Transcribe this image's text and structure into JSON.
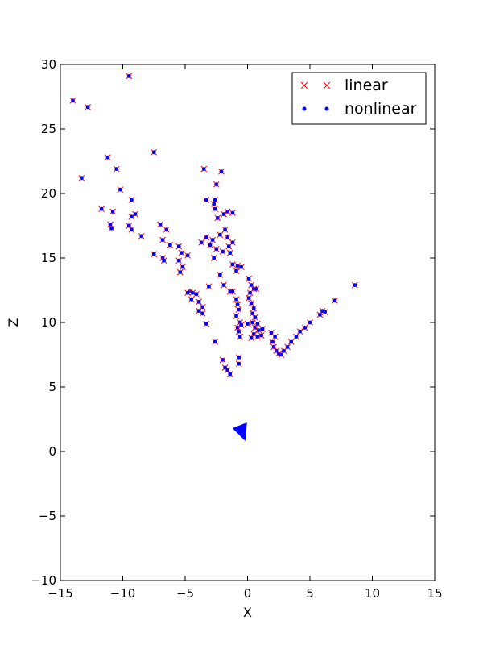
{
  "chart_data": {
    "type": "scatter",
    "title": "",
    "xlabel": "X",
    "ylabel": "Z",
    "xlim": [
      -15,
      15
    ],
    "ylim": [
      -10,
      30
    ],
    "xticks": [
      "−15",
      "−10",
      "−5",
      "0",
      "5",
      "10",
      "15"
    ],
    "yticks": [
      "−10",
      "−5",
      "0",
      "5",
      "10",
      "15",
      "20",
      "25",
      "30"
    ],
    "grid": false,
    "legend_position": "top-right",
    "colors": {
      "linear": "#ff0000",
      "nonlinear": "#0000ff",
      "camera": "#0000ff"
    },
    "series": [
      {
        "name": "linear",
        "marker": "x"
      },
      {
        "name": "nonlinear",
        "marker": "dot"
      }
    ],
    "camera": {
      "x": -0.5,
      "y": 1.5,
      "shape": "triangle"
    },
    "points": [
      [
        -14.0,
        27.2
      ],
      [
        -12.8,
        26.7
      ],
      [
        -9.5,
        29.1
      ],
      [
        -13.3,
        21.2
      ],
      [
        -11.2,
        22.8
      ],
      [
        -10.5,
        21.9
      ],
      [
        -7.5,
        23.2
      ],
      [
        -10.2,
        20.3
      ],
      [
        -11.7,
        18.8
      ],
      [
        -10.8,
        18.6
      ],
      [
        -9.3,
        19.5
      ],
      [
        -9.0,
        18.4
      ],
      [
        -9.5,
        17.5
      ],
      [
        -9.3,
        18.2
      ],
      [
        -11.0,
        17.6
      ],
      [
        -10.9,
        17.3
      ],
      [
        -9.3,
        17.2
      ],
      [
        -8.5,
        16.7
      ],
      [
        -7.0,
        17.6
      ],
      [
        -6.5,
        17.2
      ],
      [
        -6.8,
        16.4
      ],
      [
        -6.2,
        16.0
      ],
      [
        -5.5,
        15.9
      ],
      [
        -7.5,
        15.3
      ],
      [
        -6.8,
        15.0
      ],
      [
        -6.7,
        14.8
      ],
      [
        -5.3,
        15.4
      ],
      [
        -4.8,
        15.2
      ],
      [
        -5.5,
        14.8
      ],
      [
        -5.2,
        14.3
      ],
      [
        -5.4,
        13.9
      ],
      [
        -3.5,
        21.9
      ],
      [
        -2.1,
        21.7
      ],
      [
        -2.5,
        20.7
      ],
      [
        -3.3,
        19.5
      ],
      [
        -2.6,
        19.5
      ],
      [
        -2.7,
        19.2
      ],
      [
        -2.6,
        18.8
      ],
      [
        -2.4,
        18.1
      ],
      [
        -1.9,
        18.4
      ],
      [
        -1.6,
        18.6
      ],
      [
        -1.2,
        18.5
      ],
      [
        -3.3,
        16.6
      ],
      [
        -2.8,
        16.4
      ],
      [
        -2.2,
        16.8
      ],
      [
        -1.8,
        17.2
      ],
      [
        -1.6,
        16.6
      ],
      [
        -3.7,
        16.2
      ],
      [
        -3.0,
        16.0
      ],
      [
        -2.5,
        15.7
      ],
      [
        -2.0,
        15.5
      ],
      [
        -1.5,
        15.9
      ],
      [
        -1.4,
        15.4
      ],
      [
        -1.2,
        16.2
      ],
      [
        -2.7,
        15.0
      ],
      [
        -1.2,
        14.5
      ],
      [
        -0.8,
        14.4
      ],
      [
        -0.5,
        14.3
      ],
      [
        -0.9,
        14.0
      ],
      [
        -2.2,
        13.7
      ],
      [
        -1.9,
        12.9
      ],
      [
        -1.4,
        12.4
      ],
      [
        -3.1,
        12.8
      ],
      [
        -4.6,
        12.4
      ],
      [
        -4.8,
        12.3
      ],
      [
        -4.4,
        12.3
      ],
      [
        -4.1,
        12.2
      ],
      [
        -4.5,
        11.8
      ],
      [
        -3.9,
        11.6
      ],
      [
        -3.6,
        11.2
      ],
      [
        -3.9,
        10.9
      ],
      [
        -3.6,
        10.7
      ],
      [
        -3.3,
        9.9
      ],
      [
        -1.2,
        12.4
      ],
      [
        -0.9,
        11.8
      ],
      [
        -0.8,
        11.4
      ],
      [
        -0.7,
        11.0
      ],
      [
        -0.9,
        10.5
      ],
      [
        -0.6,
        10.0
      ],
      [
        -0.8,
        9.6
      ],
      [
        -0.5,
        9.8
      ],
      [
        -0.7,
        9.3
      ],
      [
        -0.6,
        8.9
      ],
      [
        0.1,
        13.4
      ],
      [
        0.3,
        12.9
      ],
      [
        0.5,
        12.6
      ],
      [
        0.7,
        12.6
      ],
      [
        0.2,
        12.3
      ],
      [
        0.1,
        11.9
      ],
      [
        0.3,
        11.5
      ],
      [
        0.5,
        11.1
      ],
      [
        0.4,
        10.7
      ],
      [
        0.6,
        10.4
      ],
      [
        0.4,
        10.0
      ],
      [
        0.8,
        9.9
      ],
      [
        0.6,
        9.6
      ],
      [
        0.9,
        9.4
      ],
      [
        1.2,
        9.5
      ],
      [
        0.5,
        9.1
      ],
      [
        0.8,
        8.9
      ],
      [
        1.1,
        9.0
      ],
      [
        0.3,
        8.8
      ],
      [
        0.0,
        9.9
      ],
      [
        1.9,
        9.2
      ],
      [
        2.2,
        8.9
      ],
      [
        2.0,
        8.5
      ],
      [
        2.1,
        8.1
      ],
      [
        2.3,
        7.8
      ],
      [
        2.5,
        7.6
      ],
      [
        2.7,
        7.5
      ],
      [
        2.9,
        7.8
      ],
      [
        3.2,
        8.1
      ],
      [
        3.5,
        8.5
      ],
      [
        3.9,
        8.9
      ],
      [
        4.2,
        9.3
      ],
      [
        4.6,
        9.6
      ],
      [
        5.0,
        10.0
      ],
      [
        5.8,
        10.6
      ],
      [
        6.2,
        10.8
      ],
      [
        6.0,
        10.9
      ],
      [
        7.0,
        11.7
      ],
      [
        8.6,
        12.9
      ],
      [
        -2.6,
        8.5
      ],
      [
        -2.0,
        7.1
      ],
      [
        -1.8,
        6.5
      ],
      [
        -1.6,
        6.3
      ],
      [
        -1.4,
        6.0
      ],
      [
        -0.7,
        6.8
      ],
      [
        -0.7,
        7.3
      ]
    ]
  }
}
